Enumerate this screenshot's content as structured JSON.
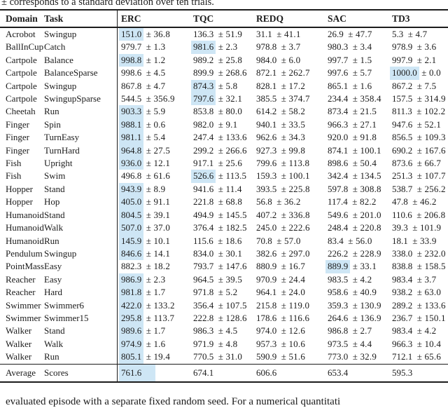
{
  "colors": {
    "highlight": "#cee6f5",
    "rule": "#1c1c1c"
  },
  "caption_top_partial": "± corresponds to a standard deviation over ten trials.",
  "caption_bottom_partial": "evaluated episode with a separate fixed random seed. For a numerical quantitati",
  "table": {
    "headers": [
      "Domain",
      "Task",
      "ERC",
      "TQC",
      "REDQ",
      "SAC",
      "TD3"
    ],
    "plus_minus": "±",
    "rows": [
      {
        "domain": "Acrobot",
        "task": "Swingup",
        "scores": [
          [
            "151.0",
            "36.8",
            1
          ],
          [
            "136.3",
            "51.9",
            0
          ],
          [
            "31.1",
            "41.1",
            0
          ],
          [
            "26.9",
            "47.7",
            0
          ],
          [
            "5.3",
            "4.7",
            0
          ]
        ]
      },
      {
        "domain": "BallInCup",
        "task": "Catch",
        "scores": [
          [
            "979.7",
            "1.3",
            0
          ],
          [
            "981.6",
            "2.3",
            1
          ],
          [
            "978.8",
            "3.7",
            0
          ],
          [
            "980.3",
            "3.4",
            0
          ],
          [
            "978.9",
            "3.6",
            0
          ]
        ]
      },
      {
        "domain": "Cartpole",
        "task": "Balance",
        "scores": [
          [
            "998.8",
            "1.2",
            1
          ],
          [
            "989.2",
            "25.8",
            0
          ],
          [
            "984.0",
            "6.0",
            0
          ],
          [
            "997.7",
            "1.5",
            0
          ],
          [
            "997.9",
            "2.1",
            0
          ]
        ]
      },
      {
        "domain": "Cartpole",
        "task": "BalanceSparse",
        "scores": [
          [
            "998.6",
            "4.5",
            0
          ],
          [
            "899.9",
            "268.6",
            0
          ],
          [
            "872.1",
            "262.7",
            0
          ],
          [
            "997.6",
            "5.7",
            0
          ],
          [
            "1000.0",
            "0.0",
            1
          ]
        ]
      },
      {
        "domain": "Cartpole",
        "task": "Swingup",
        "scores": [
          [
            "867.8",
            "4.7",
            0
          ],
          [
            "874.3",
            "5.8",
            1
          ],
          [
            "828.1",
            "17.2",
            0
          ],
          [
            "865.1",
            "1.6",
            0
          ],
          [
            "867.2",
            "7.5",
            0
          ]
        ]
      },
      {
        "domain": "Cartpole",
        "task": "SwingupSparse",
        "scores": [
          [
            "544.5",
            "356.9",
            0
          ],
          [
            "797.6",
            "32.1",
            1
          ],
          [
            "385.5",
            "374.7",
            0
          ],
          [
            "234.4",
            "358.4",
            0
          ],
          [
            "157.5",
            "314.9",
            0
          ]
        ]
      },
      {
        "domain": "Cheetah",
        "task": "Run",
        "scores": [
          [
            "903.3",
            "5.9",
            1
          ],
          [
            "853.8",
            "80.0",
            0
          ],
          [
            "614.2",
            "58.2",
            0
          ],
          [
            "873.4",
            "21.5",
            0
          ],
          [
            "811.3",
            "102.2",
            0
          ]
        ]
      },
      {
        "domain": "Finger",
        "task": "Spin",
        "scores": [
          [
            "988.1",
            "0.6",
            1
          ],
          [
            "982.0",
            "9.1",
            0
          ],
          [
            "940.1",
            "33.5",
            0
          ],
          [
            "966.3",
            "27.1",
            0
          ],
          [
            "947.6",
            "52.1",
            0
          ]
        ]
      },
      {
        "domain": "Finger",
        "task": "TurnEasy",
        "scores": [
          [
            "981.1",
            "5.4",
            1
          ],
          [
            "247.4",
            "133.6",
            0
          ],
          [
            "962.6",
            "34.3",
            0
          ],
          [
            "920.0",
            "91.8",
            0
          ],
          [
            "856.5",
            "109.3",
            0
          ]
        ]
      },
      {
        "domain": "Finger",
        "task": "TurnHard",
        "scores": [
          [
            "964.8",
            "27.5",
            1
          ],
          [
            "299.2",
            "266.6",
            0
          ],
          [
            "927.3",
            "99.8",
            0
          ],
          [
            "874.1",
            "100.1",
            0
          ],
          [
            "690.2",
            "167.6",
            0
          ]
        ]
      },
      {
        "domain": "Fish",
        "task": "Upright",
        "scores": [
          [
            "936.0",
            "12.1",
            1
          ],
          [
            "917.1",
            "25.6",
            0
          ],
          [
            "799.6",
            "113.8",
            0
          ],
          [
            "898.6",
            "50.4",
            0
          ],
          [
            "873.6",
            "66.7",
            0
          ]
        ]
      },
      {
        "domain": "Fish",
        "task": "Swim",
        "scores": [
          [
            "496.8",
            "61.6",
            0
          ],
          [
            "526.6",
            "113.5",
            1
          ],
          [
            "159.3",
            "100.1",
            0
          ],
          [
            "342.4",
            "134.5",
            0
          ],
          [
            "251.3",
            "107.7",
            0
          ]
        ]
      },
      {
        "domain": "Hopper",
        "task": "Stand",
        "scores": [
          [
            "943.9",
            "8.9",
            1
          ],
          [
            "941.6",
            "11.4",
            0
          ],
          [
            "393.5",
            "225.8",
            0
          ],
          [
            "597.8",
            "308.8",
            0
          ],
          [
            "538.7",
            "256.2",
            0
          ]
        ]
      },
      {
        "domain": "Hopper",
        "task": "Hop",
        "scores": [
          [
            "405.0",
            "91.1",
            1
          ],
          [
            "221.8",
            "68.8",
            0
          ],
          [
            "56.8",
            "36.2",
            0
          ],
          [
            "117.4",
            "82.2",
            0
          ],
          [
            "47.8",
            "46.2",
            0
          ]
        ]
      },
      {
        "domain": "Humanoid",
        "task": "Stand",
        "scores": [
          [
            "804.5",
            "39.1",
            1
          ],
          [
            "494.9",
            "145.5",
            0
          ],
          [
            "407.2",
            "336.8",
            0
          ],
          [
            "549.6",
            "201.0",
            0
          ],
          [
            "110.6",
            "206.8",
            0
          ]
        ]
      },
      {
        "domain": "Humanoid",
        "task": "Walk",
        "scores": [
          [
            "507.0",
            "37.0",
            1
          ],
          [
            "376.4",
            "182.5",
            0
          ],
          [
            "245.0",
            "222.6",
            0
          ],
          [
            "248.4",
            "220.8",
            0
          ],
          [
            "39.3",
            "101.9",
            0
          ]
        ]
      },
      {
        "domain": "Humanoid",
        "task": "Run",
        "scores": [
          [
            "145.9",
            "10.1",
            1
          ],
          [
            "115.6",
            "18.6",
            0
          ],
          [
            "70.8",
            "57.0",
            0
          ],
          [
            "83.4",
            "56.0",
            0
          ],
          [
            "18.1",
            "33.9",
            0
          ]
        ]
      },
      {
        "domain": "Pendulum",
        "task": "Swingup",
        "scores": [
          [
            "846.6",
            "14.1",
            1
          ],
          [
            "834.0",
            "30.1",
            0
          ],
          [
            "382.6",
            "297.0",
            0
          ],
          [
            "226.2",
            "228.9",
            0
          ],
          [
            "338.0",
            "232.0",
            0
          ]
        ]
      },
      {
        "domain": "PointMass",
        "task": "Easy",
        "scores": [
          [
            "882.3",
            "18.2",
            0
          ],
          [
            "793.7",
            "147.6",
            0
          ],
          [
            "880.9",
            "16.7",
            0
          ],
          [
            "889.9",
            "33.1",
            1
          ],
          [
            "838.8",
            "158.5",
            0
          ]
        ]
      },
      {
        "domain": "Reacher",
        "task": "Easy",
        "scores": [
          [
            "986.9",
            "2.3",
            1
          ],
          [
            "964.5",
            "39.5",
            0
          ],
          [
            "970.9",
            "24.4",
            0
          ],
          [
            "983.5",
            "4.2",
            0
          ],
          [
            "983.4",
            "3.7",
            0
          ]
        ]
      },
      {
        "domain": "Reacher",
        "task": "Hard",
        "scores": [
          [
            "981.8",
            "1.7",
            1
          ],
          [
            "971.8",
            "5.2",
            0
          ],
          [
            "964.1",
            "24.0",
            0
          ],
          [
            "958.6",
            "40.9",
            0
          ],
          [
            "938.2",
            "63.0",
            0
          ]
        ]
      },
      {
        "domain": "Swimmer",
        "task": "Swimmer6",
        "scores": [
          [
            "422.0",
            "133.2",
            1
          ],
          [
            "356.4",
            "107.5",
            0
          ],
          [
            "215.8",
            "119.0",
            0
          ],
          [
            "359.3",
            "130.9",
            0
          ],
          [
            "289.2",
            "133.6",
            0
          ]
        ]
      },
      {
        "domain": "Swimmer",
        "task": "Swimmer15",
        "scores": [
          [
            "295.8",
            "113.7",
            1
          ],
          [
            "222.8",
            "128.6",
            0
          ],
          [
            "178.6",
            "116.6",
            0
          ],
          [
            "264.6",
            "136.9",
            0
          ],
          [
            "236.7",
            "150.1",
            0
          ]
        ]
      },
      {
        "domain": "Walker",
        "task": "Stand",
        "scores": [
          [
            "989.6",
            "1.7",
            1
          ],
          [
            "986.3",
            "4.5",
            0
          ],
          [
            "974.0",
            "12.6",
            0
          ],
          [
            "986.8",
            "2.7",
            0
          ],
          [
            "983.4",
            "4.2",
            0
          ]
        ]
      },
      {
        "domain": "Walker",
        "task": "Walk",
        "scores": [
          [
            "974.9",
            "1.6",
            1
          ],
          [
            "971.9",
            "4.8",
            0
          ],
          [
            "957.3",
            "10.6",
            0
          ],
          [
            "973.5",
            "4.4",
            0
          ],
          [
            "966.3",
            "10.4",
            0
          ]
        ]
      },
      {
        "domain": "Walker",
        "task": "Run",
        "scores": [
          [
            "805.1",
            "19.4",
            1
          ],
          [
            "770.5",
            "31.0",
            0
          ],
          [
            "590.9",
            "51.6",
            0
          ],
          [
            "773.0",
            "32.9",
            0
          ],
          [
            "712.1",
            "65.6",
            0
          ]
        ]
      }
    ],
    "average": {
      "domain": "Average",
      "task": "Scores",
      "scores": [
        [
          "761.6",
          null,
          1
        ],
        [
          "674.1",
          null,
          0
        ],
        [
          "606.6",
          null,
          0
        ],
        [
          "653.4",
          null,
          0
        ],
        [
          "595.3",
          null,
          0
        ]
      ]
    }
  }
}
